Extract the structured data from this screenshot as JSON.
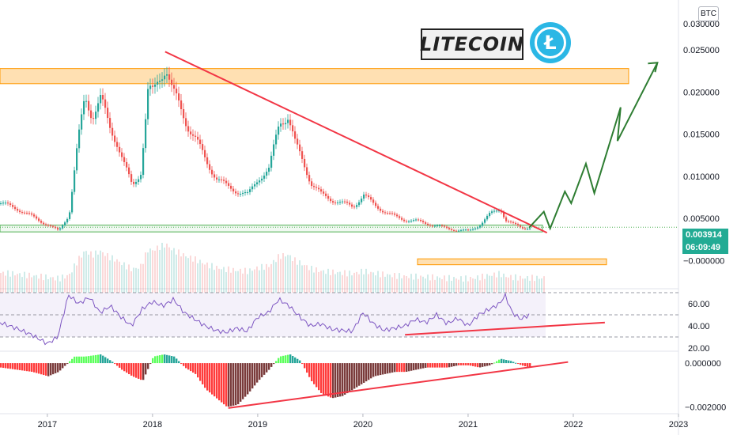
{
  "currency_badge": "BTC",
  "logo": {
    "text": "LITECOIN",
    "icon": "litecoin-icon",
    "coin_color": "#2bb7e5"
  },
  "last_price": {
    "value": "0.003914",
    "countdown": "06:09:49",
    "color": "#22ab94"
  },
  "colors": {
    "up": "#26a69a",
    "down": "#ef5350",
    "trendline": "#f23645",
    "projection": "#2e7d32",
    "zone_fill": "#ffe0b2",
    "zone_border": "#ff9800",
    "support_zone": "#4caf50",
    "rsi": "#7e57c2",
    "rsi_band": "#ede7f6",
    "hist_light": "#5cff5c",
    "hist_red": "#ff3b3b",
    "hist_dark": "#7a3b3b"
  },
  "chart_data": [
    {
      "type": "candlestick",
      "panel": "price",
      "y_ticks": [
        "0.030000",
        "0.025000",
        "0.020000",
        "0.015000",
        "0.010000",
        "0.005000",
        "−0.000000"
      ],
      "ylim": [
        -0.001,
        0.03
      ],
      "x_ticks": [
        "2017",
        "2018",
        "2019",
        "2020",
        "2021",
        "2022",
        "2023"
      ],
      "xlim": [
        2016.55,
        2023.0
      ],
      "series": [
        {
          "kind": "close",
          "x": [
            2016.55,
            2016.7,
            2016.85,
            2017.0,
            2017.1,
            2017.2,
            2017.28,
            2017.35,
            2017.42,
            2017.5,
            2017.58,
            2017.65,
            2017.72,
            2017.8,
            2017.88,
            2017.95,
            2018.0,
            2018.05,
            2018.12,
            2018.18,
            2018.25,
            2018.32,
            2018.4,
            2018.5,
            2018.6,
            2018.7,
            2018.8,
            2018.9,
            2019.0,
            2019.1,
            2019.2,
            2019.28,
            2019.35,
            2019.42,
            2019.5,
            2019.6,
            2019.7,
            2019.8,
            2019.9,
            2020.0,
            2020.1,
            2020.2,
            2020.3,
            2020.4,
            2020.5,
            2020.6,
            2020.7,
            2020.8,
            2020.9,
            2021.0,
            2021.1,
            2021.2,
            2021.3,
            2021.35,
            2021.42,
            2021.5,
            2021.58
          ],
          "values": [
            0.0068,
            0.0062,
            0.0052,
            0.0042,
            0.0035,
            0.0055,
            0.0138,
            0.0195,
            0.0172,
            0.0192,
            0.016,
            0.0142,
            0.0115,
            0.0088,
            0.0105,
            0.0202,
            0.0198,
            0.0215,
            0.0232,
            0.0202,
            0.0182,
            0.0162,
            0.0145,
            0.0118,
            0.0098,
            0.0088,
            0.0082,
            0.0078,
            0.0098,
            0.0108,
            0.0165,
            0.0172,
            0.0138,
            0.0118,
            0.0092,
            0.0078,
            0.0072,
            0.0068,
            0.0064,
            0.0078,
            0.0066,
            0.0058,
            0.0052,
            0.0048,
            0.0047,
            0.0044,
            0.0041,
            0.0038,
            0.0036,
            0.0035,
            0.0042,
            0.0055,
            0.0062,
            0.0048,
            0.0043,
            0.0039,
            0.003914
          ]
        }
      ],
      "annotations": {
        "resistance_zone": [
          0.021,
          0.0228
        ],
        "support_zone": [
          0.0034,
          0.0042
        ],
        "lower_zone": [
          -0.0005,
          0.0002
        ],
        "trendline": {
          "x": [
            2018.12,
            2021.75
          ],
          "y": [
            0.0248,
            0.0033
          ]
        },
        "projection": {
          "x": [
            2021.58,
            2021.72,
            2021.78,
            2021.92,
            2021.98,
            2022.12,
            2022.2,
            2022.45,
            2022.42,
            2022.8
          ],
          "y": [
            0.0039,
            0.0058,
            0.0038,
            0.0082,
            0.0068,
            0.0115,
            0.008,
            0.0182,
            0.0142,
            0.0235
          ]
        }
      }
    },
    {
      "type": "line",
      "panel": "rsi",
      "y_ticks": [
        "60.00",
        "40.00",
        "20.00"
      ],
      "ylim": [
        20,
        70
      ],
      "bands": [
        30,
        50,
        70
      ],
      "series": [
        {
          "name": "",
          "x": [
            2016.55,
            2016.7,
            2016.85,
            2017.0,
            2017.1,
            2017.2,
            2017.3,
            2017.4,
            2017.5,
            2017.6,
            2017.7,
            2017.8,
            2017.9,
            2018.0,
            2018.1,
            2018.2,
            2018.3,
            2018.4,
            2018.5,
            2018.6,
            2018.7,
            2018.8,
            2018.9,
            2019.0,
            2019.1,
            2019.2,
            2019.3,
            2019.4,
            2019.5,
            2019.6,
            2019.7,
            2019.8,
            2019.9,
            2020.0,
            2020.1,
            2020.2,
            2020.3,
            2020.4,
            2020.5,
            2020.6,
            2020.7,
            2020.8,
            2020.9,
            2021.0,
            2021.1,
            2021.2,
            2021.3,
            2021.35,
            2021.42,
            2021.5,
            2021.58
          ],
          "values": [
            43,
            38,
            32,
            24,
            30,
            68,
            60,
            66,
            52,
            58,
            48,
            40,
            55,
            62,
            58,
            64,
            52,
            46,
            40,
            36,
            34,
            38,
            35,
            48,
            52,
            64,
            58,
            48,
            40,
            42,
            37,
            36,
            35,
            52,
            42,
            36,
            38,
            40,
            46,
            43,
            50,
            42,
            47,
            40,
            50,
            55,
            60,
            68,
            52,
            46,
            50
          ]
        }
      ],
      "annotations": {
        "trendline": {
          "x": [
            2020.4,
            2022.3
          ],
          "y": [
            32,
            43
          ]
        }
      }
    },
    {
      "type": "bar",
      "panel": "oscillator",
      "y_ticks": [
        "0.000000",
        "−0.002000"
      ],
      "ylim": [
        -0.0022,
        0.0004
      ],
      "series": [
        {
          "name": "",
          "x": [
            2016.55,
            2016.7,
            2016.85,
            2017.0,
            2017.1,
            2017.25,
            2017.35,
            2017.5,
            2017.6,
            2017.7,
            2017.8,
            2017.9,
            2018.0,
            2018.1,
            2018.2,
            2018.3,
            2018.4,
            2018.5,
            2018.6,
            2018.7,
            2018.8,
            2018.9,
            2019.0,
            2019.1,
            2019.2,
            2019.3,
            2019.4,
            2019.5,
            2019.6,
            2019.7,
            2019.8,
            2019.9,
            2020.0,
            2020.1,
            2020.2,
            2020.3,
            2020.4,
            2020.5,
            2020.6,
            2020.7,
            2020.8,
            2020.9,
            2021.0,
            2021.1,
            2021.2,
            2021.3,
            2021.4,
            2021.5,
            2021.58
          ],
          "values": [
            -0.0002,
            -0.0003,
            -0.0004,
            -0.0006,
            -0.0004,
            0.0003,
            0.0003,
            0.0004,
            0.0001,
            -0.0003,
            -0.0006,
            -0.0008,
            0.0003,
            0.0004,
            0.0003,
            -0.0002,
            -0.0005,
            -0.0012,
            -0.0016,
            -0.002,
            -0.0019,
            -0.0014,
            -0.0008,
            -0.0003,
            0.0003,
            0.0004,
            0.0001,
            -0.0008,
            -0.0014,
            -0.0016,
            -0.0015,
            -0.0012,
            -0.0009,
            -0.0006,
            -0.0005,
            -0.0004,
            -0.0004,
            -0.0003,
            -0.0002,
            -0.0002,
            -0.0002,
            -0.0001,
            -0.0001,
            -0.0002,
            -0.0001,
            0.0002,
            0.0001,
            -0.0001,
            -0.0002
          ]
        }
      ],
      "annotations": {
        "trendline": {
          "x": [
            2018.72,
            2021.95
          ],
          "y": [
            -0.00205,
            5e-05
          ]
        }
      }
    }
  ]
}
